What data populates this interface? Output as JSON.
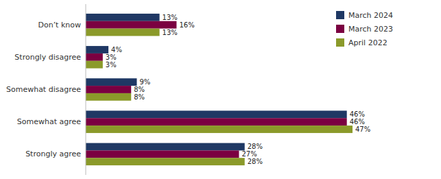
{
  "chart_data": {
    "type": "bar",
    "orientation": "horizontal",
    "categories": [
      "Strongly agree",
      "Somewhat agree",
      "Somewhat disagree",
      "Strongly disagree",
      "Don’t know"
    ],
    "series": [
      {
        "name": "March 2024",
        "color": "#1F3864",
        "values": [
          28,
          46,
          9,
          4,
          13
        ],
        "value_labels": [
          "28%",
          "46%",
          "9%",
          "4%",
          "13%"
        ]
      },
      {
        "name": "March 2023",
        "color": "#7B0041",
        "values": [
          27,
          46,
          8,
          3,
          16
        ],
        "value_labels": [
          "27%",
          "46%",
          "8%",
          "3%",
          "16%"
        ]
      },
      {
        "name": "April 2022",
        "color": "#8B9A2A",
        "values": [
          28,
          47,
          8,
          3,
          13
        ],
        "value_labels": [
          "28%",
          "47%",
          "8%",
          "3%",
          "13%"
        ]
      }
    ],
    "xlim": [
      0,
      58
    ],
    "data_labels": true,
    "tick_labels": "y",
    "grid": false,
    "legend": "upper right"
  }
}
